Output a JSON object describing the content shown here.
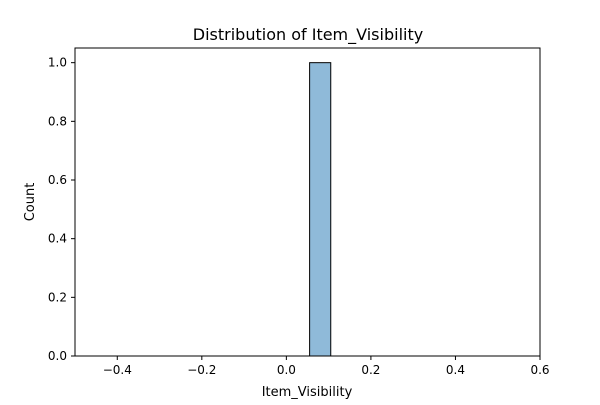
{
  "chart_data": {
    "type": "bar",
    "title": "Distribution of Item_Visibility",
    "xlabel": "Item_Visibility",
    "ylabel": "Count",
    "xlim": [
      -0.5,
      0.6
    ],
    "ylim": [
      0,
      1.05
    ],
    "x_ticks": [
      -0.4,
      -0.2,
      0.0,
      0.2,
      0.4,
      0.6
    ],
    "x_tick_labels": [
      "−0.4",
      "−0.2",
      "0.0",
      "0.2",
      "0.4",
      "0.6"
    ],
    "y_ticks": [
      0.0,
      0.2,
      0.4,
      0.6,
      0.8,
      1.0
    ],
    "y_tick_labels": [
      "0.0",
      "0.2",
      "0.4",
      "0.6",
      "0.8",
      "1.0"
    ],
    "bins": [
      {
        "x0": 0.055,
        "x1": 0.105,
        "count": 1
      }
    ],
    "baseline_extent": [
      -0.45,
      0.55
    ],
    "grid": false,
    "bar_color": "#8fbad9",
    "bar_edge_color": "#000000"
  }
}
